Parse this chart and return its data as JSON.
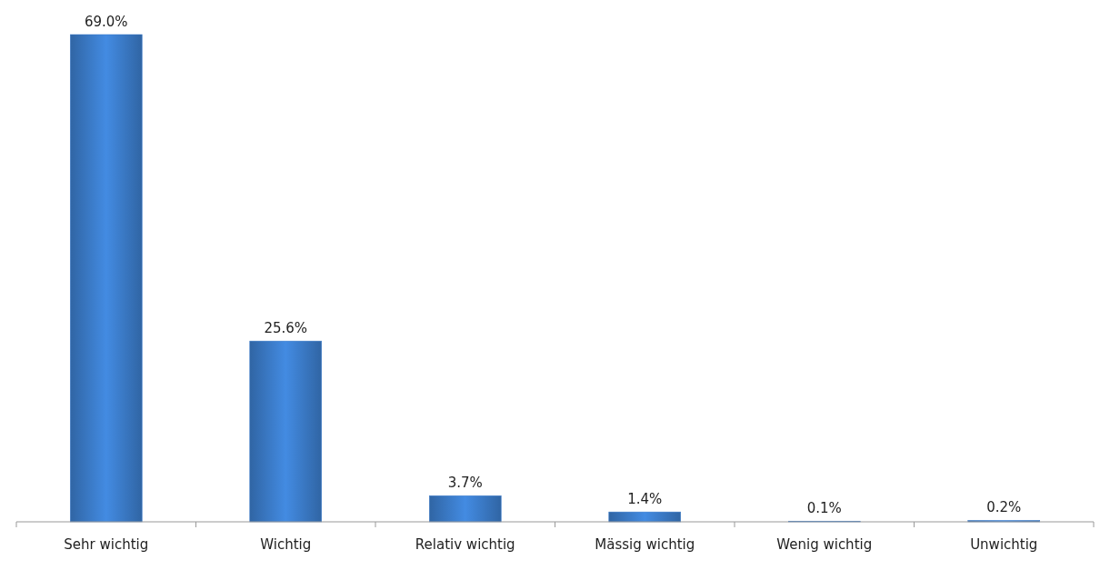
{
  "chart_data": {
    "type": "bar",
    "categories": [
      "Sehr wichtig",
      "Wichtig",
      "Relativ wichtig",
      "Mässig wichtig",
      "Wenig wichtig",
      "Unwichtig"
    ],
    "values": [
      69.0,
      25.6,
      3.7,
      1.4,
      0.1,
      0.2
    ],
    "value_labels": [
      "69.0%",
      "25.6%",
      "3.7%",
      "1.4%",
      "0.1%",
      "0.2%"
    ],
    "color": "#3c7dcb"
  }
}
